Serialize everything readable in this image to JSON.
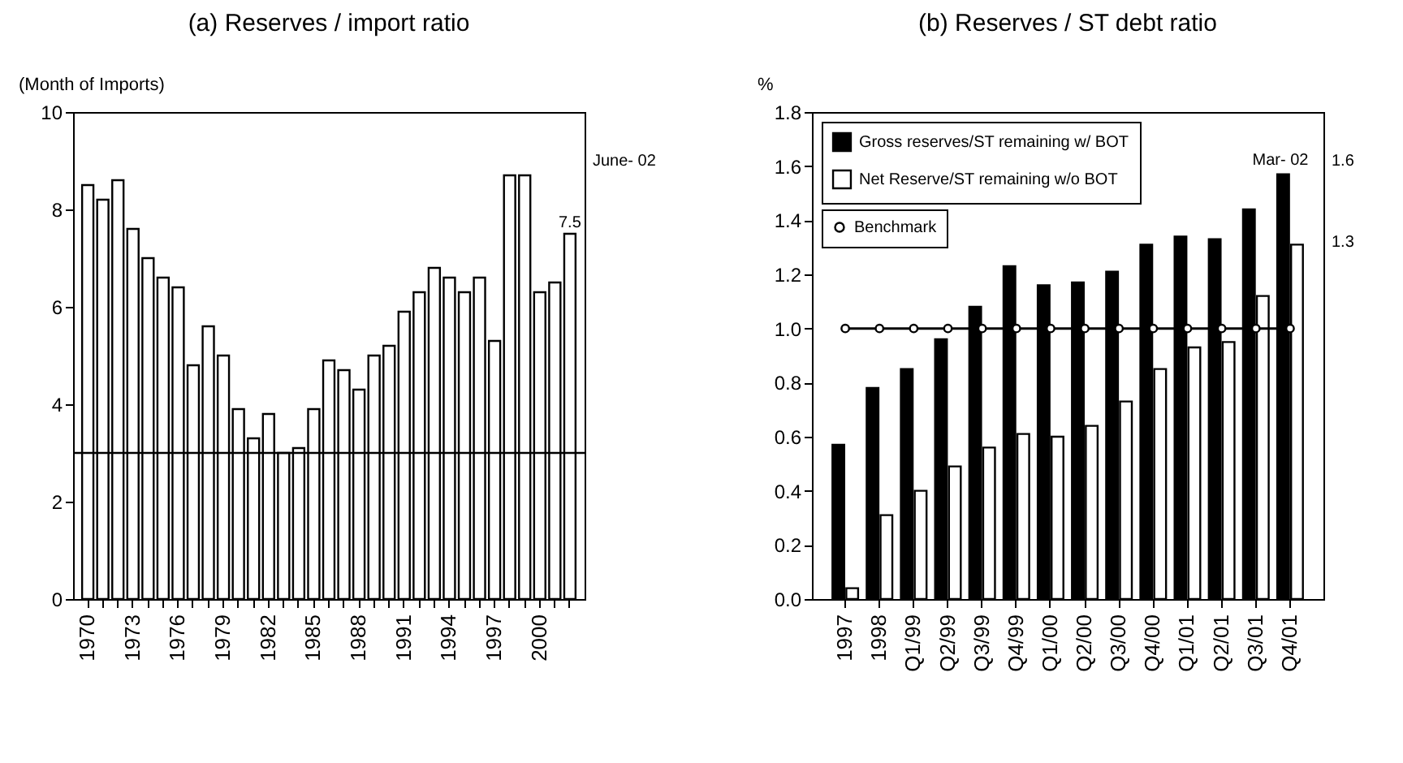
{
  "chart_data": [
    {
      "type": "bar",
      "title": "(a) Reserves / import ratio",
      "ylabel": "(Month of Imports)",
      "categories": [
        "1970",
        null,
        null,
        "1973",
        null,
        null,
        "1976",
        null,
        null,
        "1979",
        null,
        null,
        "1982",
        null,
        null,
        "1985",
        null,
        null,
        "1988",
        null,
        null,
        "1991",
        null,
        null,
        "1994",
        null,
        null,
        "1997",
        null,
        null,
        "2000",
        null,
        null
      ],
      "series": [
        {
          "color": "#ffffff",
          "values": [
            8.5,
            8.2,
            8.6,
            7.6,
            7.0,
            6.6,
            6.4,
            4.8,
            5.6,
            5.0,
            3.9,
            3.3,
            3.8,
            3.0,
            3.1,
            3.9,
            4.9,
            4.7,
            4.3,
            5.0,
            5.2,
            5.9,
            6.3,
            6.8,
            6.6,
            6.3,
            6.6,
            5.3,
            8.7,
            8.7,
            6.3,
            6.5,
            7.5
          ],
          "value_labels": [
            null,
            null,
            null,
            null,
            null,
            null,
            null,
            null,
            null,
            null,
            null,
            null,
            null,
            null,
            null,
            null,
            null,
            null,
            null,
            null,
            null,
            null,
            null,
            null,
            null,
            null,
            null,
            null,
            null,
            null,
            null,
            null,
            "7.5"
          ]
        }
      ],
      "ylim": [
        0,
        10
      ],
      "yticks": [
        0,
        2,
        4,
        6,
        8,
        10
      ],
      "ref_lines": [
        {
          "axis": "y",
          "value": 3,
          "color": "#000000"
        }
      ],
      "annotations": [
        "June- 02"
      ]
    },
    {
      "type": "bar",
      "title": "(b) Reserves / ST debt ratio",
      "ylabel": "%",
      "categories": [
        "1997",
        "1998",
        "Q1/99",
        "Q2/99",
        "Q3/99",
        "Q4/99",
        "Q1/00",
        "Q2/00",
        "Q3/00",
        "Q4/00",
        "Q1/01",
        "Q2/01",
        "Q3/01",
        "Q4/01"
      ],
      "series": [
        {
          "name": "Gross reserves/ST remaining w/ BOT",
          "color": "#000000",
          "values": [
            0.57,
            0.78,
            0.85,
            0.96,
            1.08,
            1.23,
            1.16,
            1.17,
            1.21,
            1.31,
            1.34,
            1.33,
            1.44,
            1.57
          ]
        },
        {
          "name": "Net Reserve/ST remaining w/o BOT",
          "color": "#ffffff",
          "values": [
            0.04,
            0.31,
            0.4,
            0.49,
            0.56,
            0.61,
            0.6,
            0.64,
            0.73,
            0.85,
            0.93,
            0.95,
            1.12,
            1.31
          ]
        },
        {
          "name": "Benchmark",
          "type": "line",
          "color": "#000000",
          "marker": "circle",
          "line_style": "solid",
          "values": [
            1.0,
            1.0,
            1.0,
            1.0,
            1.0,
            1.0,
            1.0,
            1.0,
            1.0,
            1.0,
            1.0,
            1.0,
            1.0,
            1.0
          ]
        }
      ],
      "ylim": [
        0,
        1.8
      ],
      "yticks": [
        {
          "value": 0,
          "label": "0.0"
        },
        {
          "value": 0.2,
          "label": "0.2"
        },
        {
          "value": 0.4,
          "label": "0.4"
        },
        {
          "value": 0.6,
          "label": "0.6"
        },
        {
          "value": 0.8,
          "label": "0.8"
        },
        {
          "value": 1.0,
          "label": "1.0"
        },
        {
          "value": 1.2,
          "label": "1.2"
        },
        {
          "value": 1.4,
          "label": "1.4"
        },
        {
          "value": 1.6,
          "label": "1.6"
        },
        {
          "value": 1.8,
          "label": "1.8"
        }
      ],
      "legend": "top left",
      "annotations": [
        {
          "text": "Mar- 02",
          "x": "Q4/01",
          "y": 1.57
        },
        "1.6",
        "1.3"
      ]
    }
  ]
}
